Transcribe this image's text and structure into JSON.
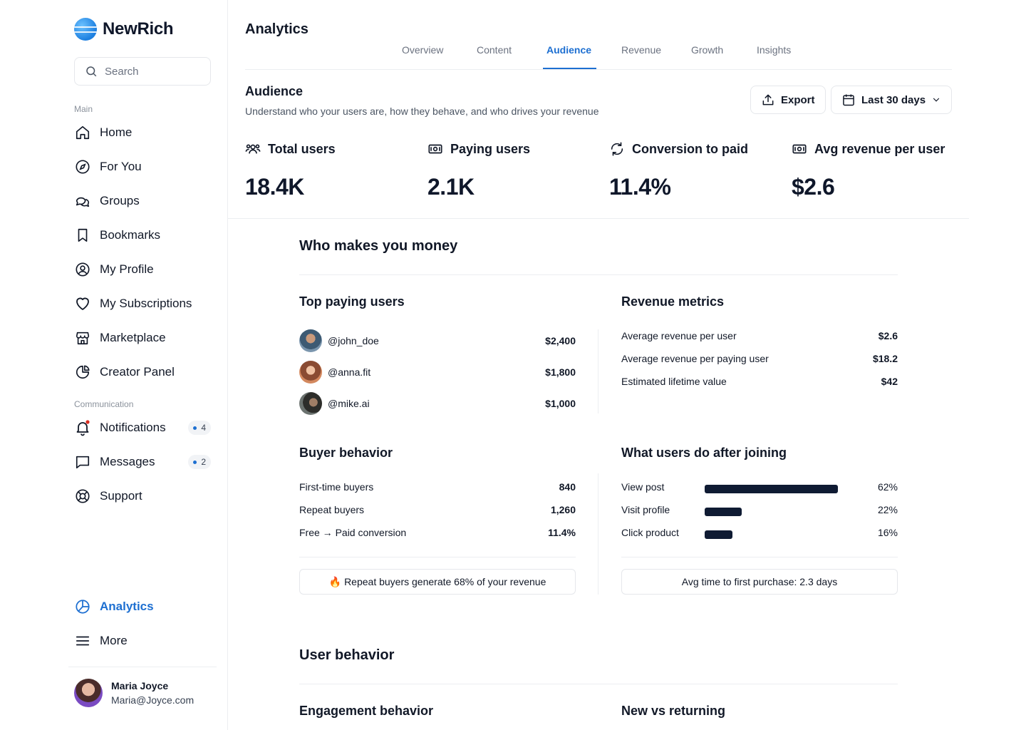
{
  "brand": {
    "name": "NewRich"
  },
  "search": {
    "placeholder": "Search"
  },
  "sidebar": {
    "main_label": "Main",
    "main_items": [
      {
        "label": "Home",
        "icon": "home-icon"
      },
      {
        "label": "For You",
        "icon": "compass-icon"
      },
      {
        "label": "Groups",
        "icon": "chat-bubbles-icon"
      },
      {
        "label": "Bookmarks",
        "icon": "bookmark-icon"
      },
      {
        "label": "My Profile",
        "icon": "user-circle-icon"
      },
      {
        "label": "My Subscriptions",
        "icon": "heart-icon"
      },
      {
        "label": "Marketplace",
        "icon": "store-icon"
      },
      {
        "label": "Creator Panel",
        "icon": "pie-chart-icon"
      }
    ],
    "communication_label": "Communication",
    "communication_items": [
      {
        "label": "Notifications",
        "icon": "bell-icon",
        "badge": "4"
      },
      {
        "label": "Messages",
        "icon": "message-icon",
        "badge": "2"
      },
      {
        "label": "Support",
        "icon": "lifebuoy-icon"
      }
    ],
    "bottom_items": [
      {
        "label": "Analytics",
        "icon": "analytics-icon",
        "active": true
      },
      {
        "label": "More",
        "icon": "menu-icon"
      }
    ],
    "user": {
      "name": "Maria Joyce",
      "email": "Maria@Joyce.com"
    }
  },
  "header": {
    "title": "Analytics",
    "tabs": [
      "Overview",
      "Content",
      "Audience",
      "Revenue",
      "Growth",
      "Insights"
    ],
    "active_tab": "Audience"
  },
  "audience": {
    "title": "Audience",
    "subtitle": "Understand who your users are, how they behave, and who drives your revenue",
    "export_label": "Export",
    "range_label": "Last 30 days"
  },
  "stats": [
    {
      "label": "Total users",
      "value": "18.4K",
      "icon": "users-icon"
    },
    {
      "label": "Paying users",
      "value": "2.1K",
      "icon": "cash-icon"
    },
    {
      "label": "Conversion to paid",
      "value": "11.4%",
      "icon": "refresh-icon"
    },
    {
      "label": "Avg revenue per user",
      "value": "$2.6",
      "icon": "cash-icon"
    }
  ],
  "money": {
    "title": "Who makes you money",
    "top_payers_title": "Top paying users",
    "top_payers": [
      {
        "handle": "@john_doe",
        "amount": "$2,400"
      },
      {
        "handle": "@anna.fit",
        "amount": "$1,800"
      },
      {
        "handle": "@mike.ai",
        "amount": "$1,000"
      }
    ],
    "revenue_metrics_title": "Revenue metrics",
    "revenue_metrics": [
      {
        "label": "Average revenue per user",
        "value": "$2.6"
      },
      {
        "label": "Average revenue per paying user",
        "value": "$18.2"
      },
      {
        "label": "Estimated lifetime value",
        "value": "$42"
      }
    ],
    "buyer_title": "Buyer behavior",
    "buyer_metrics": [
      {
        "label": "First-time buyers",
        "value": "840"
      },
      {
        "label": "Repeat buyers",
        "value": "1,260"
      },
      {
        "label": "Free → Paid conversion",
        "value": "11.4%"
      }
    ],
    "buyer_note": "Repeat buyers generate 68% of your revenue",
    "actions_title": "What users do after joining",
    "actions": [
      {
        "label": "View post",
        "pct_text": "62%",
        "pct": 62
      },
      {
        "label": "Visit profile",
        "pct_text": "22%",
        "pct": 22
      },
      {
        "label": "Click product",
        "pct_text": "16%",
        "pct": 16
      }
    ],
    "actions_note": "Avg time to first purchase: 2.3 days"
  },
  "behavior": {
    "title": "User behavior",
    "engagement_title": "Engagement behavior",
    "new_vs_returning_title": "New vs returning"
  },
  "colors": {
    "accent": "#1d6fd1",
    "bar": "#0f1b33",
    "notification_dot": "#d92d20"
  }
}
